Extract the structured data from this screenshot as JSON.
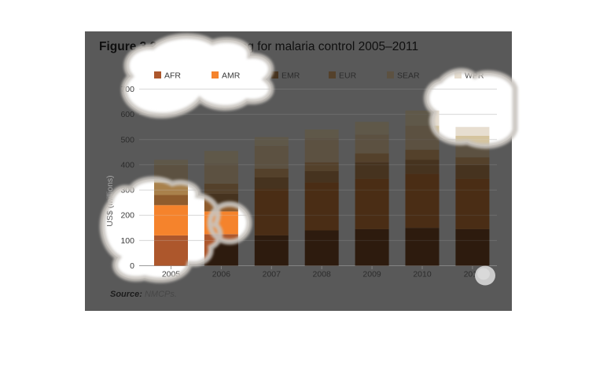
{
  "figure": {
    "title_prefix": "Figure 3.2",
    "title_rest": "Domestic funding for malaria control 2005–2011",
    "source_label": "Source:",
    "source_value": "NMCPs."
  },
  "chart_data": {
    "type": "bar",
    "stacked": true,
    "title": "Figure 3.2 Domestic funding for malaria control 2005–2011",
    "xlabel": "",
    "ylabel": "US$ (millions)",
    "ylim": [
      0,
      700
    ],
    "ytick_step": 100,
    "ytick_labels": [
      "0",
      "100",
      "200",
      "300",
      "400",
      "500",
      "600",
      "700"
    ],
    "grid": true,
    "legend_position": "top",
    "categories": [
      "2005",
      "2006",
      "2007",
      "2008",
      "2009",
      "2010",
      "2011"
    ],
    "series": [
      {
        "name": "AFR",
        "values": [
          120,
          125,
          120,
          140,
          145,
          150,
          145
        ],
        "color_bright": "#ad572c",
        "color_muted": "#2d1b0e"
      },
      {
        "name": "AMR",
        "values": [
          120,
          90,
          185,
          190,
          200,
          215,
          200
        ],
        "color_bright": "#f5832c",
        "color_muted": "#4a2d15"
      },
      {
        "name": "EMR",
        "values": [
          40,
          70,
          45,
          45,
          65,
          55,
          55
        ],
        "color_bright": "#8f5c2d",
        "color_muted": "#46331f"
      },
      {
        "name": "EUR",
        "values": [
          50,
          40,
          35,
          35,
          35,
          40,
          30
        ],
        "color_bright": "#a9814b",
        "color_muted": "#54412b"
      },
      {
        "name": "SEAR",
        "values": [
          70,
          80,
          90,
          95,
          75,
          95,
          85
        ],
        "color_bright": "#d5c49e",
        "color_muted": "#5c5141"
      },
      {
        "name": "WPR",
        "values": [
          20,
          50,
          35,
          35,
          50,
          60,
          35
        ],
        "color_bright": "#e7ded0",
        "color_muted": "#5f5849"
      }
    ],
    "totals": [
      420,
      455,
      510,
      540,
      570,
      615,
      550
    ]
  },
  "colors": {
    "page_bg": "#ffffff",
    "panel_overlay_bg": "#595959",
    "bright_bg": "#ffffff",
    "grid_muted": "#6d6d6d",
    "grid_bright": "#d8d8d8",
    "axis_muted": "#848484",
    "axis_bright": "#9b9b9b",
    "tick_text_muted": "#2c2c2c",
    "tick_text_bright": "#3a3a3a",
    "ylabel_muted": "#a9a9a9",
    "ylabel_bright": "#5a5a5a",
    "title_text": "#0f0f0f",
    "source_label_text": "#1c1c1c",
    "source_value_text": "#474747",
    "blob_fill": "#ffffff",
    "blob_rim": "#c9c5bf",
    "gray_dot": "#cbcbcb"
  }
}
